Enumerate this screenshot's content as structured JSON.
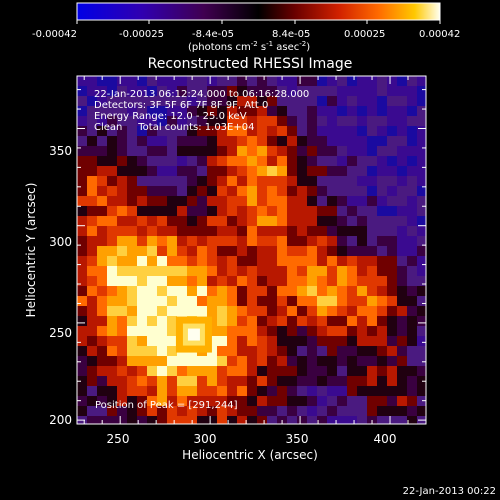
{
  "colorbar": {
    "tick_labels": [
      "-0.00042",
      "-0.00025",
      "-8.4e-05",
      "8.4e-05",
      "0.00025",
      "0.00042"
    ],
    "unit_label": "(photons cm",
    "unit_exp1": "-2",
    "unit_mid": " s",
    "unit_exp2": "-1",
    "unit_end": " asec",
    "unit_exp3": "-2",
    "unit_close": ")",
    "colors": [
      "#0000e6",
      "#2000a0",
      "#400060",
      "#000000",
      "#5a0000",
      "#b01800",
      "#e84000",
      "#ff8a00",
      "#ffd000",
      "#ffffe8"
    ]
  },
  "title": "Reconstructed RHESSI Image",
  "info": {
    "line1": "22-Jan-2013 06:12:24.000 to 06:16:28.000",
    "line2": "Detectors: 3F 5F 6F 7F 8F 9F, Att 0",
    "line3": "Energy Range: 12.0 - 25.0 keV",
    "line4": "Clean     Total counts: 1.03E+04"
  },
  "peak_label": "Position of Peak = [291,244]",
  "axes": {
    "xlabel": "Heliocentric X (arcsec)",
    "ylabel": "Heliocentric Y (arcsec)",
    "xlim": [
      226,
      420
    ],
    "ylim": [
      198,
      377
    ],
    "x_ticks": [
      "250",
      "300",
      "350",
      "400"
    ],
    "y_ticks": [
      "200",
      "250",
      "300",
      "350"
    ]
  },
  "peak": {
    "x": 291,
    "y": 244
  },
  "timestamp": "22-Jan-2013 00:22"
}
